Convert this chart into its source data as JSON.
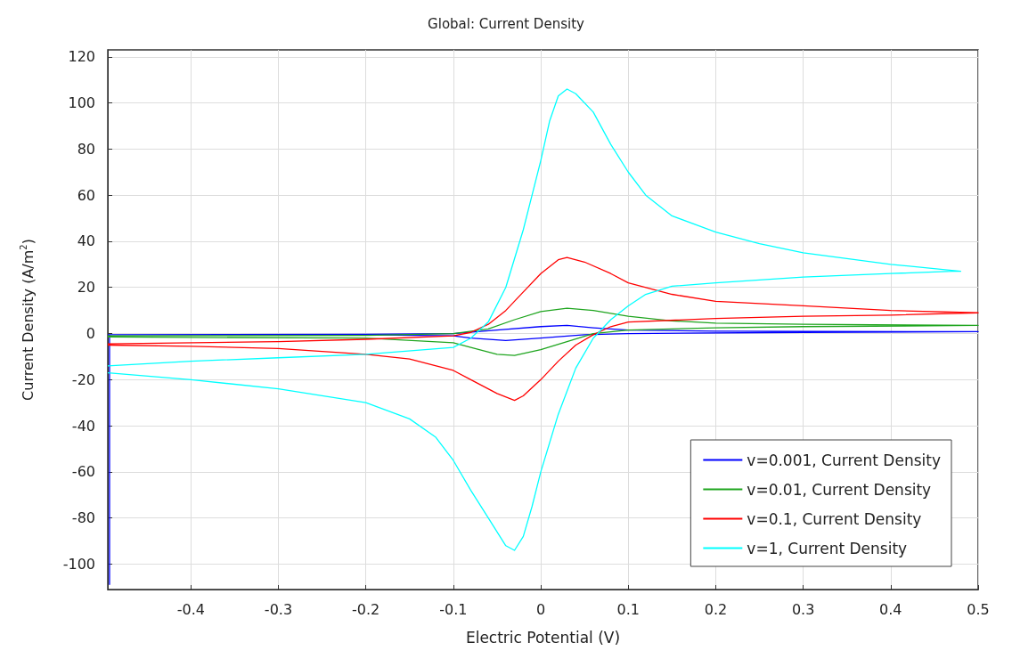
{
  "chart_data": {
    "type": "line",
    "title": "Global: Current Density",
    "xlabel": "Electric Potential (V)",
    "ylabel": "Current Density (A/m$^{2}$)",
    "xlim": [
      -0.495,
      0.5
    ],
    "ylim": [
      -111,
      123
    ],
    "xticks": [
      -0.4,
      -0.3,
      -0.2,
      -0.1,
      0,
      0.1,
      0.2,
      0.3,
      0.4,
      0.5
    ],
    "yticks": [
      -100,
      -80,
      -60,
      -40,
      -20,
      0,
      20,
      40,
      60,
      80,
      100,
      120
    ],
    "grid": true,
    "legend": "bottom right",
    "series": [
      {
        "name": "v=0.001, Current Density",
        "color": "#0000ff",
        "x": [
          -0.493,
          -0.493,
          -0.2,
          -0.1,
          -0.05,
          0,
          0.03,
          0.06,
          0.1,
          0.2,
          0.5,
          0.3,
          0.1,
          0.05,
          0,
          -0.04,
          -0.08,
          -0.1,
          -0.2,
          -0.495
        ],
        "values": [
          -109,
          -0.5,
          -0.3,
          0,
          1.5,
          3,
          3.5,
          2.5,
          1.5,
          1,
          0.8,
          0.5,
          0,
          -0.5,
          -2,
          -3,
          -2,
          -1,
          -0.5,
          -0.5
        ]
      },
      {
        "name": "v=0.01, Current Density",
        "color": "#1fa51f",
        "x": [
          -0.495,
          -0.2,
          -0.1,
          -0.06,
          -0.03,
          0,
          0.03,
          0.06,
          0.1,
          0.15,
          0.2,
          0.3,
          0.5,
          0.3,
          0.2,
          0.1,
          0.06,
          0.03,
          0,
          -0.03,
          -0.05,
          -0.08,
          -0.1,
          -0.2,
          -0.495
        ],
        "values": [
          -1,
          -0.8,
          0,
          2,
          6,
          9.5,
          11,
          10,
          7.5,
          5.5,
          4.5,
          4,
          3.5,
          3,
          2.5,
          1.5,
          0,
          -3.5,
          -7,
          -9.5,
          -9,
          -6,
          -4,
          -2,
          -1.5
        ]
      },
      {
        "name": "v=0.1, Current Density",
        "color": "#ff0000",
        "x": [
          -0.495,
          -0.3,
          -0.2,
          -0.1,
          -0.08,
          -0.06,
          -0.04,
          -0.02,
          0,
          0.02,
          0.03,
          0.05,
          0.08,
          0.1,
          0.15,
          0.2,
          0.3,
          0.4,
          0.5,
          0.4,
          0.3,
          0.2,
          0.1,
          0.08,
          0.06,
          0.04,
          0.02,
          0,
          -0.02,
          -0.03,
          -0.05,
          -0.08,
          -0.1,
          -0.15,
          -0.2,
          -0.3,
          -0.4,
          -0.495
        ],
        "values": [
          -4.5,
          -3.5,
          -2.5,
          -1,
          0.5,
          4,
          10,
          18,
          26,
          32,
          33,
          31,
          26,
          22,
          17,
          14,
          12,
          10,
          9,
          8,
          7.5,
          6.5,
          5,
          3,
          -0.5,
          -5,
          -12,
          -20,
          -27,
          -29,
          -26,
          -20,
          -16,
          -11,
          -9,
          -6.5,
          -5.5,
          -5
        ]
      },
      {
        "name": "v=1, Current Density",
        "color": "#00ffff",
        "x": [
          -0.495,
          -0.4,
          -0.3,
          -0.2,
          -0.1,
          -0.08,
          -0.06,
          -0.04,
          -0.02,
          0,
          0.01,
          0.02,
          0.03,
          0.04,
          0.06,
          0.08,
          0.1,
          0.12,
          0.15,
          0.2,
          0.25,
          0.3,
          0.4,
          0.48,
          0.47,
          0.4,
          0.3,
          0.2,
          0.15,
          0.12,
          0.1,
          0.08,
          0.06,
          0.04,
          0.02,
          0,
          -0.01,
          -0.02,
          -0.03,
          -0.04,
          -0.06,
          -0.08,
          -0.1,
          -0.12,
          -0.15,
          -0.2,
          -0.3,
          -0.4,
          -0.495
        ],
        "values": [
          -14,
          -12,
          -10.5,
          -9,
          -6,
          -2,
          5,
          20,
          45,
          75,
          92,
          103,
          106,
          104,
          96,
          82,
          70,
          60,
          51,
          44,
          39,
          35,
          30,
          27,
          27,
          26,
          24.5,
          22,
          20.5,
          17,
          12,
          6,
          -2,
          -15,
          -35,
          -60,
          -75,
          -88,
          -94,
          -92,
          -80,
          -68,
          -55,
          -45,
          -37,
          -30,
          -24,
          -20,
          -17
        ]
      }
    ]
  }
}
